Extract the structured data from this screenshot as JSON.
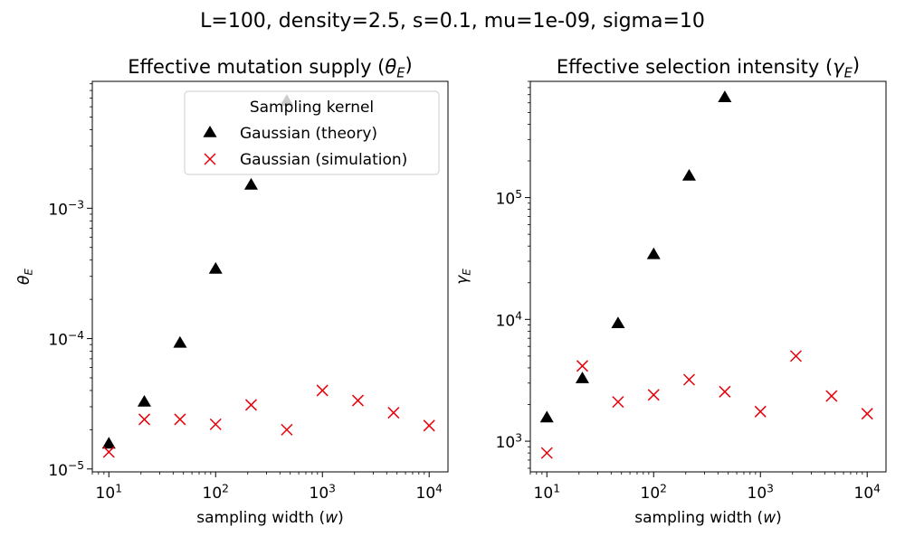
{
  "figure": {
    "suptitle": "L=100, density=2.5, s=0.1, mu=1e-09, sigma=10"
  },
  "chart_data": [
    {
      "type": "scatter",
      "title": "Effective mutation supply (θE)",
      "xlabel": "sampling width (w)",
      "ylabel": "θE",
      "xscale": "log",
      "yscale": "log",
      "xlim": [
        7,
        15000
      ],
      "ylim": [
        9.5e-06,
        0.0094
      ],
      "grid": false,
      "legend": {
        "title": "Sampling kernel",
        "placement": "top-right"
      },
      "xticks": [
        {
          "base": "10",
          "exp": "1",
          "value": 10
        },
        {
          "base": "10",
          "exp": "2",
          "value": 100
        },
        {
          "base": "10",
          "exp": "3",
          "value": 1000
        },
        {
          "base": "10",
          "exp": "4",
          "value": 10000
        }
      ],
      "yticks": [
        {
          "base": "10",
          "exp": "−5",
          "value": 1e-05
        },
        {
          "base": "10",
          "exp": "−4",
          "value": 0.0001
        },
        {
          "base": "10",
          "exp": "−3",
          "value": 0.001
        }
      ],
      "series": [
        {
          "name": "Gaussian (theory)",
          "marker": "triangle",
          "color": "#000000",
          "x": [
            10,
            21.5,
            46.4,
            100,
            215,
            464
          ],
          "y": [
            1.55e-05,
            3.25e-05,
            9.2e-05,
            0.00034,
            0.0015,
            0.0066
          ]
        },
        {
          "name": "Gaussian (simulation)",
          "marker": "x",
          "color": "#e8000b",
          "x": [
            10,
            21.5,
            46.4,
            100,
            215,
            464,
            1000,
            2150,
            4640,
            10000
          ],
          "y": [
            1.35e-05,
            2.4e-05,
            2.4e-05,
            2.2e-05,
            3.1e-05,
            2e-05,
            4e-05,
            3.35e-05,
            2.7e-05,
            2.15e-05
          ]
        }
      ]
    },
    {
      "type": "scatter",
      "title": "Effective selection intensity (γE)",
      "xlabel": "sampling width (w)",
      "ylabel": "γE",
      "xscale": "log",
      "yscale": "log",
      "xlim": [
        7,
        15000
      ],
      "ylim": [
        560,
        900000
      ],
      "grid": false,
      "xticks": [
        {
          "base": "10",
          "exp": "1",
          "value": 10
        },
        {
          "base": "10",
          "exp": "2",
          "value": 100
        },
        {
          "base": "10",
          "exp": "3",
          "value": 1000
        },
        {
          "base": "10",
          "exp": "4",
          "value": 10000
        }
      ],
      "yticks": [
        {
          "base": "10",
          "exp": "3",
          "value": 1000
        },
        {
          "base": "10",
          "exp": "4",
          "value": 10000
        },
        {
          "base": "10",
          "exp": "5",
          "value": 100000
        }
      ],
      "series": [
        {
          "name": "Gaussian (theory)",
          "marker": "triangle",
          "color": "#000000",
          "x": [
            10,
            21.5,
            46.4,
            100,
            215,
            464
          ],
          "y": [
            1550,
            3250,
            9200,
            34000,
            150000,
            660000
          ]
        },
        {
          "name": "Gaussian (simulation)",
          "marker": "x",
          "color": "#e8000b",
          "x": [
            10,
            21.5,
            46.4,
            100,
            215,
            464,
            1000,
            2150,
            4640,
            10000
          ],
          "y": [
            800,
            4150,
            2100,
            2400,
            3200,
            2550,
            1750,
            5000,
            2350,
            1680
          ]
        }
      ]
    }
  ]
}
